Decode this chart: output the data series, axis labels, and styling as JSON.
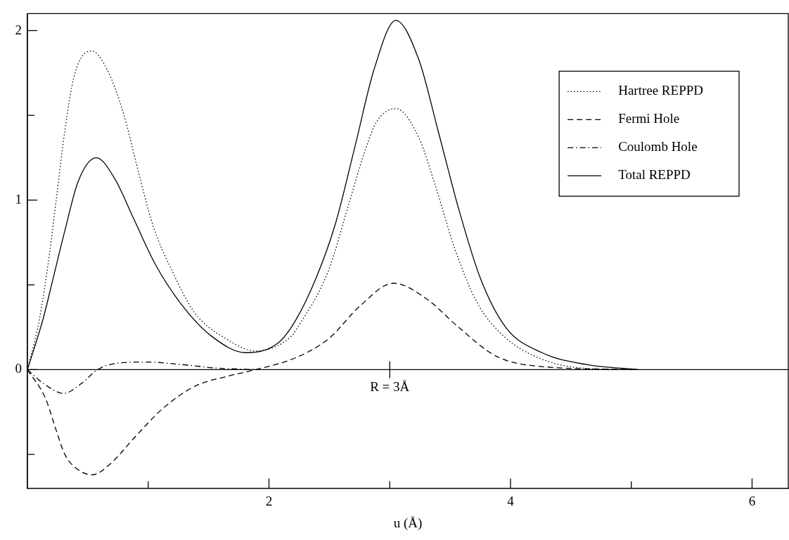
{
  "chart_data": {
    "type": "line",
    "xlabel": "u (Å)",
    "xlim": [
      0,
      6.3
    ],
    "ylim": [
      -0.7,
      2.1
    ],
    "xticks": [
      {
        "value": 1,
        "label": null
      },
      2,
      {
        "value": 3,
        "label": null
      },
      4,
      {
        "value": 5,
        "label": null
      },
      6
    ],
    "yticks": [
      {
        "value": -0.5,
        "label": null
      },
      0,
      {
        "value": 0.5,
        "label": null
      },
      1,
      {
        "value": 1.5,
        "label": null
      },
      2
    ],
    "grid": false,
    "legend": "top right",
    "marker": "none",
    "ref_lines": [
      {
        "axis": "y",
        "value": 0,
        "color": "#000000",
        "line_style": "solid"
      }
    ],
    "annotations": [
      {
        "text": "R = 3Å",
        "x": 3,
        "y": 0
      }
    ],
    "series": [
      {
        "name": "Hartree REPPD",
        "color": "#000000",
        "line_style": "dotted",
        "x": [
          0,
          0.1,
          0.18,
          0.245,
          0.31,
          0.39,
          0.53,
          0.66,
          0.8,
          0.9,
          1.04,
          1.2,
          1.38,
          1.65,
          1.89,
          2.19,
          2.22,
          2.49,
          2.65,
          2.79,
          2.89,
          3.05,
          3.24,
          3.38,
          3.54,
          3.72,
          3.94,
          4.23,
          4.58,
          5.06
        ],
        "values": [
          0,
          0.3,
          0.67,
          1.04,
          1.41,
          1.74,
          1.88,
          1.77,
          1.5,
          1.22,
          0.85,
          0.58,
          0.34,
          0.18,
          0.11,
          0.2,
          0.23,
          0.58,
          0.95,
          1.28,
          1.46,
          1.54,
          1.37,
          1.08,
          0.71,
          0.4,
          0.2,
          0.07,
          0.01,
          0
        ]
      },
      {
        "name": "Fermi Hole",
        "color": "#000000",
        "line_style": "dashed",
        "x": [
          0,
          0.15,
          0.23,
          0.31,
          0.42,
          0.54,
          0.68,
          0.9,
          1.12,
          1.38,
          1.65,
          1.89,
          2.22,
          2.49,
          2.76,
          3.03,
          3.3,
          3.57,
          3.88,
          4.23,
          5.06
        ],
        "values": [
          0,
          -0.17,
          -0.34,
          -0.5,
          -0.59,
          -0.62,
          -0.56,
          -0.39,
          -0.23,
          -0.1,
          -0.04,
          0,
          0.07,
          0.18,
          0.38,
          0.51,
          0.42,
          0.25,
          0.08,
          0.02,
          0
        ]
      },
      {
        "name": "Coulomb Hole",
        "color": "#000000",
        "line_style": "dashdot",
        "x": [
          0,
          0.13,
          0.3,
          0.45,
          0.58,
          0.77,
          0.98,
          1.28,
          1.55,
          1.89
        ],
        "values": [
          0,
          -0.08,
          -0.14,
          -0.08,
          0,
          0.04,
          0.045,
          0.03,
          0.01,
          0
        ]
      },
      {
        "name": "Total REPPD",
        "color": "#000000",
        "line_style": "solid",
        "x": [
          0,
          0.13,
          0.21,
          0.31,
          0.42,
          0.57,
          0.72,
          0.88,
          1.06,
          1.28,
          1.52,
          1.81,
          2.08,
          2.22,
          2.39,
          2.55,
          2.71,
          2.87,
          3.05,
          3.24,
          3.4,
          3.57,
          3.75,
          3.96,
          4.26,
          4.63,
          5.06
        ],
        "values": [
          0,
          0.3,
          0.53,
          0.82,
          1.11,
          1.25,
          1.13,
          0.89,
          0.62,
          0.38,
          0.2,
          0.1,
          0.16,
          0.29,
          0.54,
          0.86,
          1.31,
          1.77,
          2.06,
          1.83,
          1.41,
          0.95,
          0.54,
          0.25,
          0.1,
          0.03,
          0
        ]
      }
    ]
  }
}
